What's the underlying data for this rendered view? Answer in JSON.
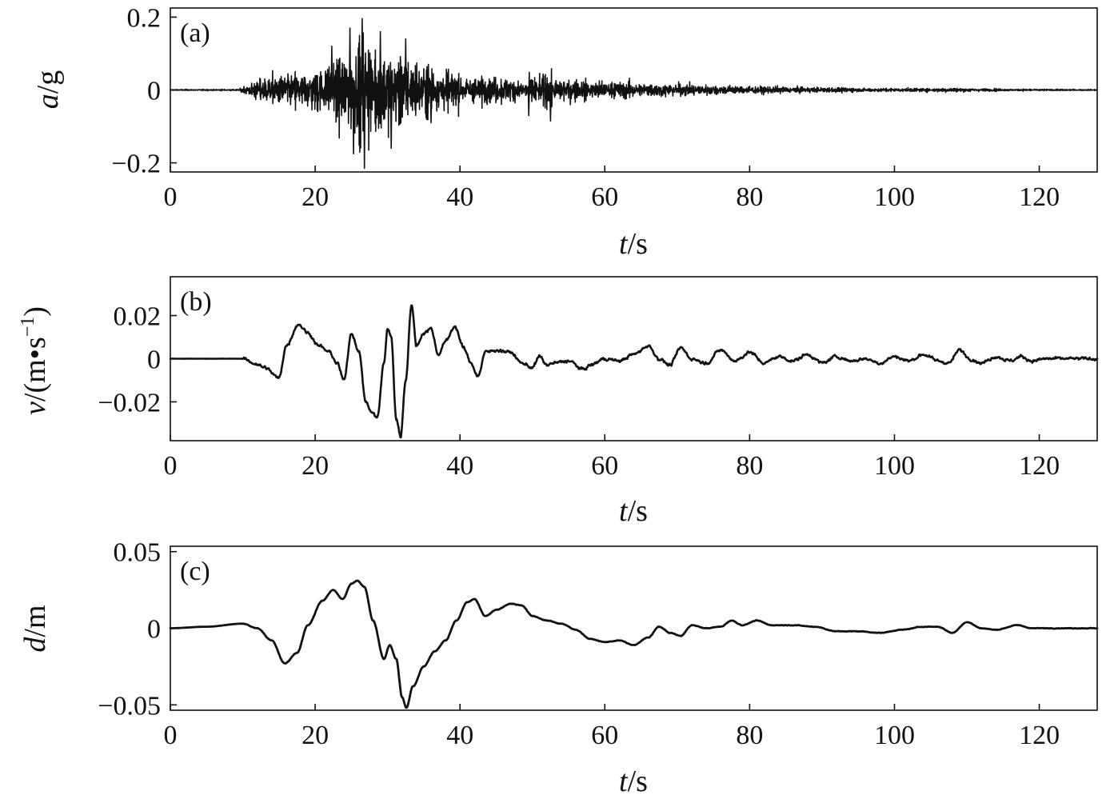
{
  "chart_data": [
    {
      "type": "line",
      "panel_label": "(a)",
      "ylabel": {
        "var": "a",
        "sep": "/",
        "unit": "g"
      },
      "xlabel": {
        "var": "t",
        "sep": "/",
        "unit": "s"
      },
      "xlim": [
        0,
        128
      ],
      "ylim": [
        -0.225,
        0.225
      ],
      "xticks": [
        0,
        20,
        40,
        60,
        80,
        100,
        120
      ],
      "xtick_labels": [
        "0",
        "20",
        "40",
        "60",
        "80",
        "100",
        "120"
      ],
      "yticks": [
        -0.2,
        0,
        0.2
      ],
      "ytick_labels": [
        "−0.2",
        "0",
        "0.2"
      ],
      "series": [
        {
          "style": "oscillatory",
          "envelope": [
            [
              0,
              0.002
            ],
            [
              9.5,
              0.003
            ],
            [
              11,
              0.03
            ],
            [
              14,
              0.06
            ],
            [
              18,
              0.07
            ],
            [
              22,
              0.1
            ],
            [
              24,
              0.14
            ],
            [
              26.5,
              0.2
            ],
            [
              28,
              0.16
            ],
            [
              30,
              0.15
            ],
            [
              32,
              0.13
            ],
            [
              36,
              0.09
            ],
            [
              40,
              0.06
            ],
            [
              44,
              0.05
            ],
            [
              48,
              0.045
            ],
            [
              52,
              0.06
            ],
            [
              56,
              0.04
            ],
            [
              60,
              0.035
            ],
            [
              65,
              0.03
            ],
            [
              70,
              0.025
            ],
            [
              75,
              0.02
            ],
            [
              80,
              0.015
            ],
            [
              90,
              0.01
            ],
            [
              100,
              0.006
            ],
            [
              108,
              0.008
            ],
            [
              115,
              0.004
            ],
            [
              128,
              0.002
            ]
          ],
          "peaks": [
            [
              26.5,
              0.196
            ],
            [
              26.8,
              -0.215
            ],
            [
              24.8,
              0.17
            ],
            [
              25.3,
              -0.175
            ],
            [
              30.5,
              -0.16
            ],
            [
              32.5,
              0.14
            ],
            [
              22.3,
              0.12
            ],
            [
              29,
              0.16
            ],
            [
              36,
              -0.09
            ],
            [
              52.5,
              -0.085
            ],
            [
              49.5,
              -0.07
            ]
          ]
        }
      ]
    },
    {
      "type": "line",
      "panel_label": "(b)",
      "ylabel": {
        "var": "v",
        "sep": "/",
        "unit": "(m•s",
        "exp": "−1",
        "close": ")"
      },
      "xlabel": {
        "var": "t",
        "sep": "/",
        "unit": "s"
      },
      "xlim": [
        0,
        128
      ],
      "ylim": [
        -0.038,
        0.038
      ],
      "xticks": [
        0,
        20,
        40,
        60,
        80,
        100,
        120
      ],
      "xtick_labels": [
        "0",
        "20",
        "40",
        "60",
        "80",
        "100",
        "120"
      ],
      "yticks": [
        -0.02,
        0,
        0.02
      ],
      "ytick_labels": [
        "−0.02",
        "0",
        "0.02"
      ],
      "series": [
        {
          "style": "smooth",
          "roughness": 0.0012,
          "x": [
            0,
            10,
            11.5,
            13,
            15,
            16,
            17.7,
            19,
            20.5,
            22,
            23,
            24,
            25,
            26,
            27,
            27.8,
            28.6,
            29.5,
            30,
            30.5,
            31.2,
            31.8,
            32.5,
            33.3,
            34,
            35,
            36,
            37,
            38,
            39.3,
            40.5,
            41.5,
            42.5,
            43.5,
            45,
            47,
            48.5,
            50,
            51,
            52,
            53,
            55,
            57,
            58,
            60,
            62,
            64,
            66,
            67.5,
            69,
            70.5,
            72,
            74,
            76,
            78,
            80,
            82,
            84,
            86,
            88,
            90,
            92,
            94,
            96,
            98,
            100,
            102,
            104,
            106,
            107.5,
            109,
            110.5,
            112,
            114,
            116,
            117.5,
            119,
            121,
            124,
            128
          ],
          "y": [
            0,
            0,
            -0.002,
            -0.004,
            -0.009,
            0.006,
            0.016,
            0.012,
            0.006,
            0.003,
            -0.002,
            -0.01,
            0.012,
            0.004,
            -0.02,
            -0.025,
            -0.027,
            -0.002,
            0.014,
            0.01,
            -0.028,
            -0.036,
            -0.01,
            0.025,
            0.006,
            0.012,
            0.014,
            0.002,
            0.008,
            0.015,
            0.005,
            -0.002,
            -0.008,
            0.003,
            0.004,
            0.003,
            -0.002,
            -0.004,
            0.001,
            -0.003,
            -0.002,
            -0.001,
            -0.005,
            -0.003,
            0.0,
            -0.001,
            0.002,
            0.006,
            0.0,
            -0.003,
            0.005,
            0.0,
            -0.002,
            0.004,
            -0.001,
            0.003,
            -0.002,
            0.001,
            -0.001,
            0.002,
            -0.002,
            0.001,
            -0.001,
            0.0,
            -0.002,
            0.001,
            -0.001,
            0.002,
            -0.001,
            -0.002,
            0.004,
            0.0,
            -0.002,
            0.001,
            -0.001,
            0.001,
            -0.001,
            0.0,
            0.0,
            0.0
          ]
        }
      ]
    },
    {
      "type": "line",
      "panel_label": "(c)",
      "ylabel": {
        "var": "d",
        "sep": "/",
        "unit": "m"
      },
      "xlabel": {
        "var": "t",
        "sep": "/",
        "unit": "s"
      },
      "xlim": [
        0,
        128
      ],
      "ylim": [
        -0.0535,
        0.0535
      ],
      "xticks": [
        0,
        20,
        40,
        60,
        80,
        100,
        120
      ],
      "xtick_labels": [
        "0",
        "20",
        "40",
        "60",
        "80",
        "100",
        "120"
      ],
      "yticks": [
        -0.05,
        0,
        0.05
      ],
      "ytick_labels": [
        "−0.05",
        "0",
        "0.05"
      ],
      "series": [
        {
          "style": "smooth",
          "roughness": 0.0003,
          "x": [
            0,
            5,
            10,
            12,
            14,
            15.8,
            17.5,
            19,
            21,
            22.5,
            23.8,
            25,
            25.8,
            26.8,
            28,
            29.5,
            30.3,
            31.2,
            32,
            32.6,
            33.5,
            35,
            36.5,
            38,
            39.5,
            41,
            42,
            43.5,
            45,
            47,
            48.5,
            50,
            52,
            54,
            56,
            58,
            60,
            62,
            64,
            66,
            67.5,
            69,
            70.5,
            72,
            74,
            76,
            77.5,
            79,
            81,
            83,
            86,
            89,
            92,
            95,
            98,
            101,
            104,
            106,
            108,
            110,
            112,
            114,
            117,
            119,
            122,
            128
          ],
          "y": [
            0,
            0.001,
            0.003,
            0.0,
            -0.008,
            -0.023,
            -0.016,
            0.002,
            0.018,
            0.025,
            0.019,
            0.029,
            0.031,
            0.027,
            0.005,
            -0.02,
            -0.011,
            -0.02,
            -0.045,
            -0.052,
            -0.038,
            -0.025,
            -0.015,
            -0.008,
            0.005,
            0.017,
            0.019,
            0.008,
            0.012,
            0.016,
            0.015,
            0.008,
            0.005,
            0.003,
            -0.001,
            -0.007,
            -0.009,
            -0.008,
            -0.011,
            -0.006,
            0.001,
            -0.003,
            -0.005,
            0.002,
            0.0,
            0.001,
            0.005,
            0.002,
            0.005,
            0.002,
            0.002,
            0.001,
            -0.002,
            -0.002,
            -0.003,
            -0.001,
            0.001,
            0.001,
            -0.003,
            0.004,
            0.0,
            -0.001,
            0.002,
            0.0,
            0.0,
            0.0
          ]
        }
      ]
    }
  ]
}
